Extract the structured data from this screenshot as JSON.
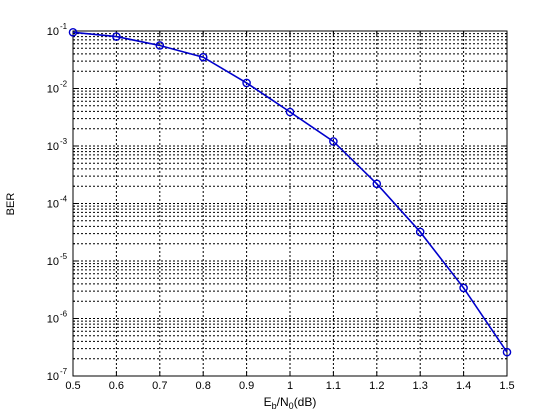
{
  "chart_data": {
    "type": "line",
    "title": "",
    "xlabel": {
      "base": "E",
      "sub1": "b",
      "mid": "/N",
      "sub2": "0",
      "tail": "(dB)"
    },
    "ylabel": "BER",
    "x_scale": "linear",
    "y_scale": "log",
    "xlim": [
      0.5,
      1.5
    ],
    "ylim": [
      1e-07,
      0.1
    ],
    "grid": true,
    "legend": "none",
    "x_ticks": [
      "0.5",
      "0.6",
      "0.7",
      "0.8",
      "0.9",
      "1",
      "1.1",
      "1.2",
      "1.3",
      "1.4",
      "1.5"
    ],
    "y_ticks": [
      {
        "base": "10",
        "exp": "-7",
        "value": 1e-07
      },
      {
        "base": "10",
        "exp": "-6",
        "value": 1e-06
      },
      {
        "base": "10",
        "exp": "-5",
        "value": 1e-05
      },
      {
        "base": "10",
        "exp": "-4",
        "value": 0.0001
      },
      {
        "base": "10",
        "exp": "-3",
        "value": 0.001
      },
      {
        "base": "10",
        "exp": "-2",
        "value": 0.01
      },
      {
        "base": "10",
        "exp": "-1",
        "value": 0.1
      }
    ],
    "series": [
      {
        "color": "#0000cc",
        "marker": "circle",
        "x": [
          0.5,
          0.6,
          0.7,
          0.8,
          0.9,
          1.0,
          1.1,
          1.2,
          1.3,
          1.4,
          1.5
        ],
        "y": [
          0.095,
          0.08,
          0.056,
          0.035,
          0.0125,
          0.0039,
          0.0012,
          0.00022,
          3.2e-05,
          3.4e-06,
          2.6e-07
        ]
      }
    ]
  }
}
